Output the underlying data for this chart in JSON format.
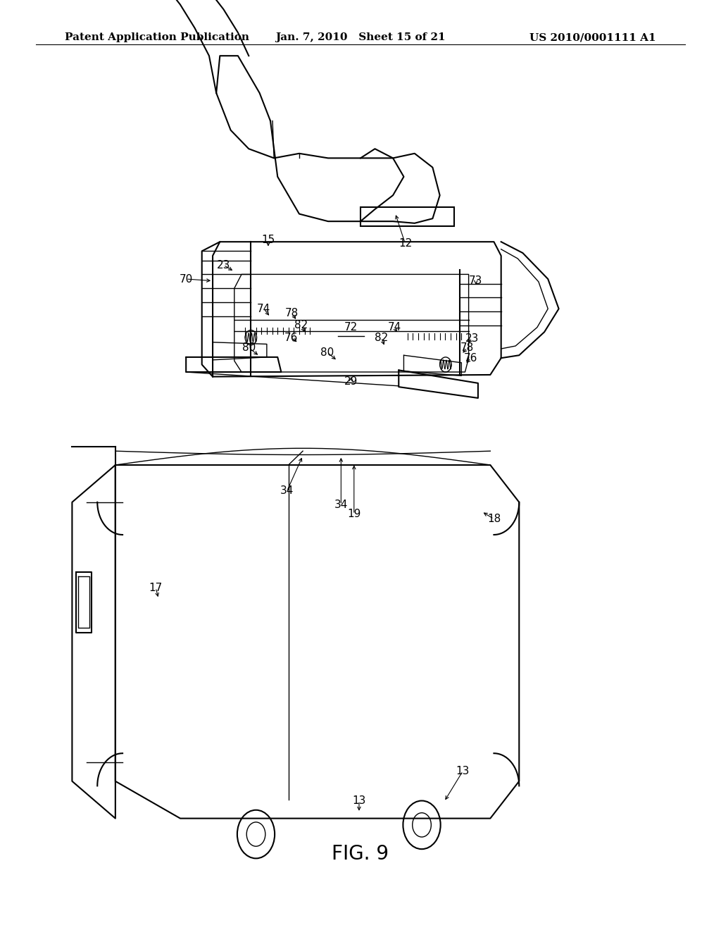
{
  "title": "",
  "fig_label": "FIG. 9",
  "header_left": "Patent Application Publication",
  "header_center": "Jan. 7, 2010   Sheet 15 of 21",
  "header_right": "US 2010/0001111 A1",
  "background_color": "#ffffff",
  "line_color": "#000000",
  "font_color": "#000000",
  "header_fontsize": 11,
  "fig_label_fontsize": 20,
  "annotation_fontsize": 11
}
